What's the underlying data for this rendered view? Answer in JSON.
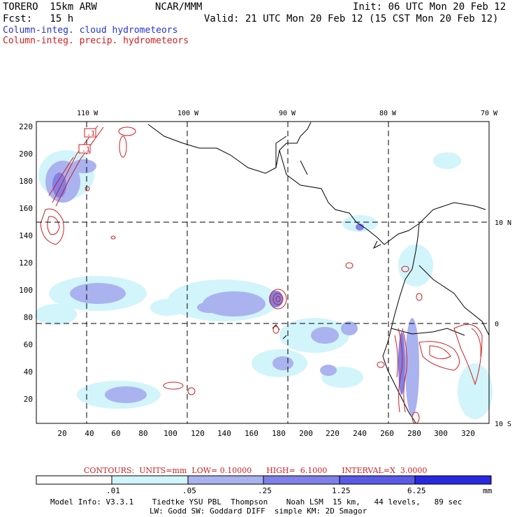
{
  "header": {
    "model_line": "TORERO  15km ARW",
    "center": "NCAR/MMM",
    "init": "Init: 06 UTC Mon 20 Feb 12",
    "fcst": "Fcst:   15 h",
    "valid": "Valid: 21 UTC Mon 20 Feb 12 (15 CST Mon 20 Feb 12)",
    "field_cloud": "Column-integ. cloud hydrometeors",
    "field_precip": "Column-integ. precip. hydrometeors"
  },
  "map": {
    "top_lon_labels": [
      "110 W",
      "100 W",
      "90 W",
      "80 W",
      "70 W"
    ],
    "right_lat_labels": [
      "10 N",
      "0",
      "10 S"
    ],
    "x_ticks": [
      "20",
      "40",
      "60",
      "80",
      "100",
      "120",
      "140",
      "160",
      "180",
      "200",
      "220",
      "240",
      "260",
      "280",
      "300",
      "320"
    ],
    "y_ticks": [
      "220",
      "200",
      "180",
      "160",
      "140",
      "120",
      "100",
      "80",
      "60",
      "40",
      "20"
    ],
    "contour_labels": [
      ".1",
      ".1"
    ]
  },
  "contour_info": {
    "text": "CONTOURS:  UNITS=mm  LOW= 0.10000      HIGH=  6.1000      INTERVAL=X  3.0000",
    "color": "#d21c1c"
  },
  "colorbar": {
    "levels": [
      ".01",
      ".05",
      ".25",
      "1.25",
      "6.25"
    ],
    "units": "mm",
    "colors": [
      "#ffffff",
      "#d2f4fb",
      "#aab2ef",
      "#8080e8",
      "#5a5ae6",
      "#2828e0"
    ]
  },
  "footer": {
    "line1": "Model Info: V3.3.1    Tiedtke YSU PBL  Thompson    Noah LSM  15 km,   44 levels,   89 sec",
    "line2": "LW: Godd SW: Goddard DIFF  simple KM: 2D Smagor"
  }
}
